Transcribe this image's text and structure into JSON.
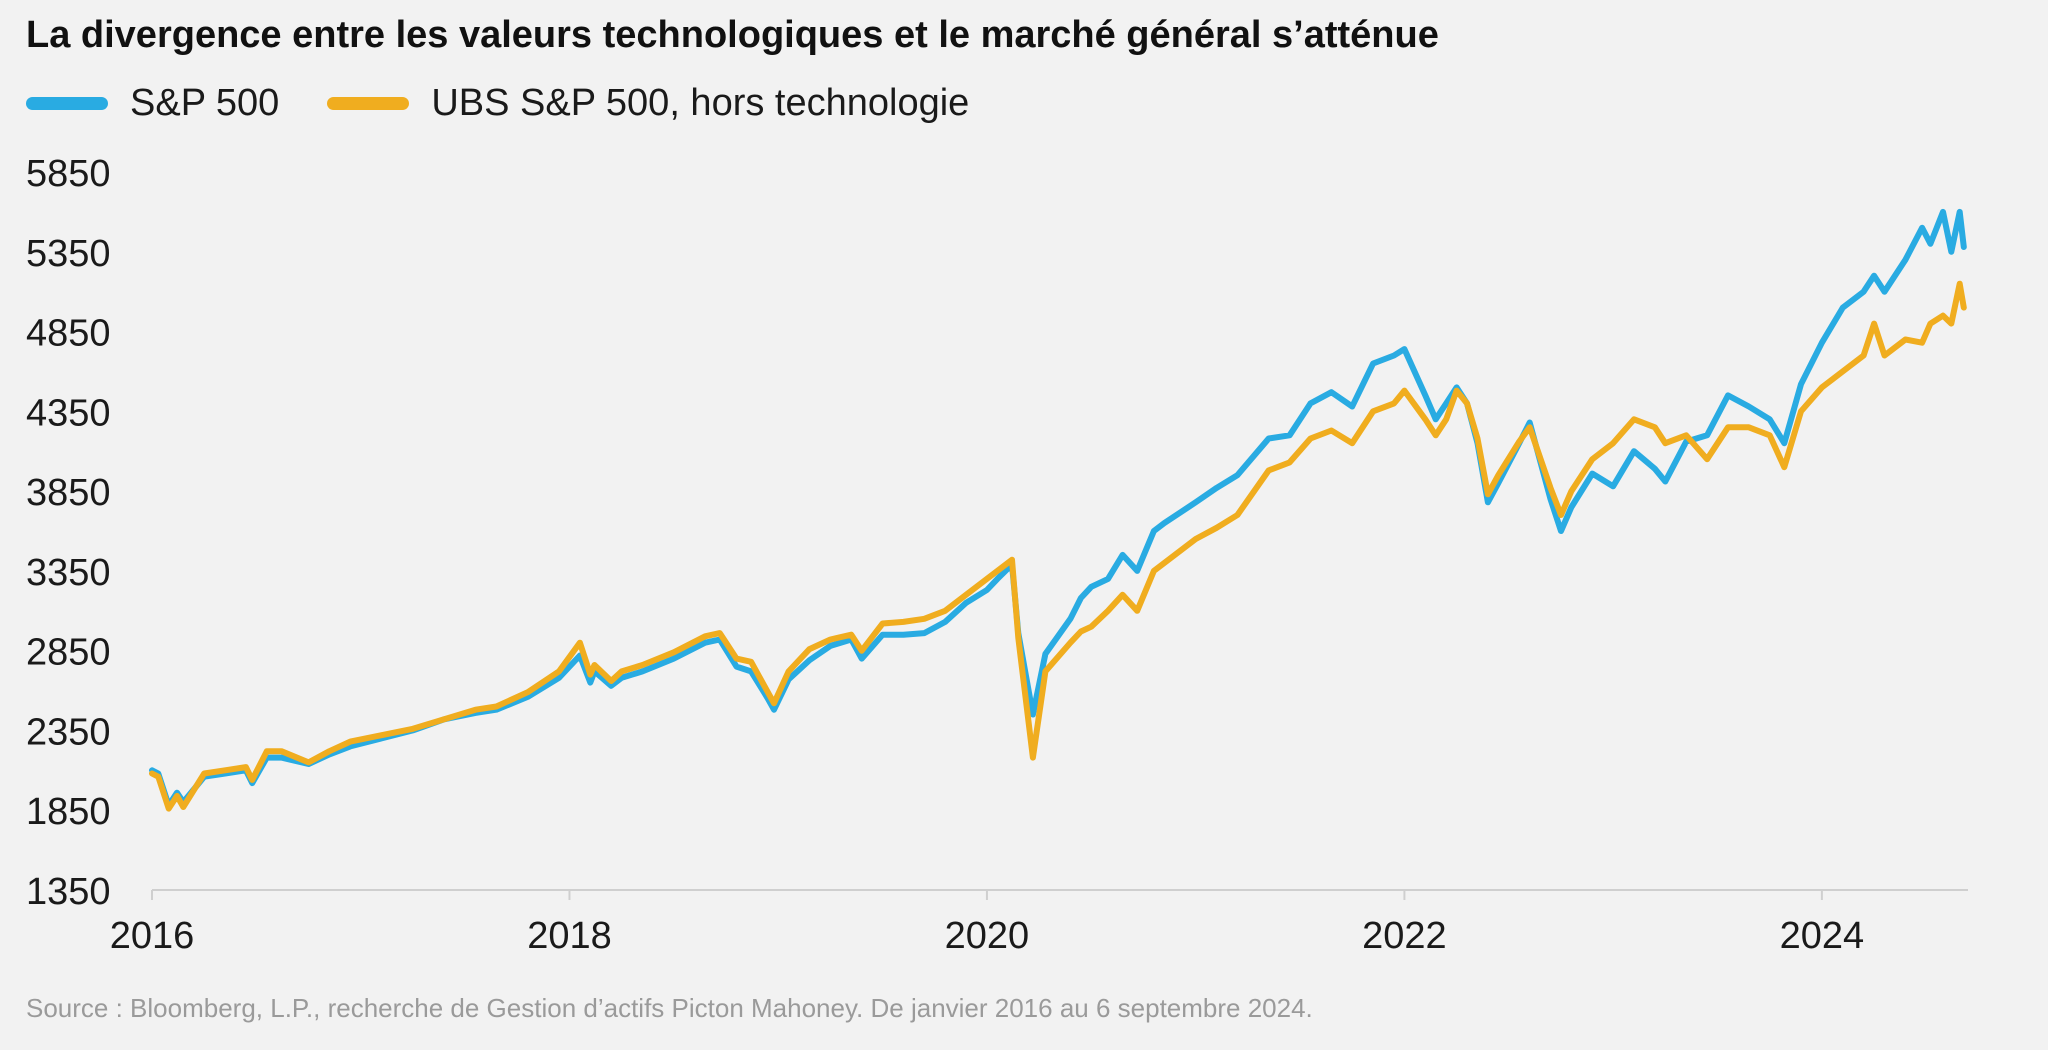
{
  "title": "La divergence entre les valeurs technologiques et le marché général s’atténue",
  "source": "Source : Bloomberg, L.P., recherche de Gestion d’actifs Picton Mahoney. De janvier 2016 au 6 septembre 2024.",
  "colors": {
    "sp500": "#29abe2",
    "ubs": "#f0ad1f",
    "axis": "#cfcfcf",
    "text": "#1a1a1a"
  },
  "chart_data": {
    "type": "line",
    "title": "La divergence entre les valeurs technologiques et le marché général s’atténue",
    "xlabel": "",
    "ylabel": "",
    "xlim": [
      2016.0,
      2024.7
    ],
    "ylim": [
      1350,
      5850
    ],
    "yticks": [
      "5850",
      "5350",
      "4850",
      "4350",
      "3850",
      "3350",
      "2850",
      "2350",
      "1850",
      "1350"
    ],
    "xticks": [
      "2016",
      "2018",
      "2020",
      "2022",
      "2024"
    ],
    "grid": false,
    "legend_position": "top-left",
    "series": [
      {
        "name": "S&P 500",
        "x": [
          2016.0,
          2016.03,
          2016.08,
          2016.12,
          2016.15,
          2016.25,
          2016.35,
          2016.45,
          2016.48,
          2016.55,
          2016.62,
          2016.75,
          2016.85,
          2016.95,
          2017.1,
          2017.25,
          2017.4,
          2017.55,
          2017.65,
          2017.8,
          2017.95,
          2018.05,
          2018.1,
          2018.12,
          2018.2,
          2018.25,
          2018.35,
          2018.5,
          2018.65,
          2018.72,
          2018.8,
          2018.87,
          2018.95,
          2018.98,
          2019.05,
          2019.15,
          2019.25,
          2019.35,
          2019.4,
          2019.5,
          2019.6,
          2019.7,
          2019.8,
          2019.9,
          2020.0,
          2020.05,
          2020.12,
          2020.15,
          2020.22,
          2020.28,
          2020.4,
          2020.45,
          2020.5,
          2020.58,
          2020.65,
          2020.72,
          2020.8,
          2020.85,
          2021.0,
          2021.1,
          2021.2,
          2021.35,
          2021.45,
          2021.55,
          2021.65,
          2021.75,
          2021.85,
          2021.95,
          2022.0,
          2022.1,
          2022.15,
          2022.2,
          2022.25,
          2022.3,
          2022.35,
          2022.4,
          2022.45,
          2022.55,
          2022.6,
          2022.7,
          2022.75,
          2022.8,
          2022.9,
          2023.0,
          2023.1,
          2023.2,
          2023.25,
          2023.35,
          2023.45,
          2023.55,
          2023.65,
          2023.75,
          2023.82,
          2023.9,
          2024.0,
          2024.1,
          2024.2,
          2024.25,
          2024.3,
          2024.4,
          2024.48,
          2024.52,
          2024.58,
          2024.62,
          2024.66,
          2024.68
        ],
        "values": [
          2100,
          2080,
          1880,
          1960,
          1900,
          2060,
          2080,
          2100,
          2020,
          2180,
          2180,
          2140,
          2200,
          2250,
          2300,
          2350,
          2420,
          2460,
          2480,
          2560,
          2680,
          2820,
          2650,
          2720,
          2630,
          2680,
          2720,
          2800,
          2900,
          2920,
          2750,
          2720,
          2550,
          2480,
          2670,
          2790,
          2880,
          2920,
          2800,
          2950,
          2950,
          2960,
          3030,
          3150,
          3230,
          3300,
          3390,
          2960,
          2450,
          2830,
          3050,
          3180,
          3250,
          3300,
          3450,
          3350,
          3600,
          3650,
          3780,
          3870,
          3950,
          4180,
          4200,
          4400,
          4470,
          4380,
          4650,
          4700,
          4740,
          4450,
          4300,
          4400,
          4500,
          4400,
          4150,
          3780,
          3900,
          4150,
          4280,
          3800,
          3600,
          3750,
          3960,
          3880,
          4100,
          3990,
          3910,
          4160,
          4200,
          4450,
          4380,
          4300,
          4150,
          4520,
          4780,
          5000,
          5100,
          5200,
          5100,
          5300,
          5500,
          5400,
          5600,
          5350,
          5600,
          5380
        ],
        "color": "#29abe2"
      },
      {
        "name": "UBS S&P 500, hors technologie",
        "x": [
          2016.0,
          2016.03,
          2016.08,
          2016.12,
          2016.15,
          2016.25,
          2016.35,
          2016.45,
          2016.48,
          2016.55,
          2016.62,
          2016.75,
          2016.85,
          2016.95,
          2017.1,
          2017.25,
          2017.4,
          2017.55,
          2017.65,
          2017.8,
          2017.95,
          2018.05,
          2018.1,
          2018.12,
          2018.2,
          2018.25,
          2018.35,
          2018.5,
          2018.65,
          2018.72,
          2018.8,
          2018.87,
          2018.95,
          2018.98,
          2019.05,
          2019.15,
          2019.25,
          2019.35,
          2019.4,
          2019.5,
          2019.6,
          2019.7,
          2019.8,
          2019.9,
          2020.0,
          2020.05,
          2020.12,
          2020.15,
          2020.22,
          2020.28,
          2020.4,
          2020.45,
          2020.5,
          2020.58,
          2020.65,
          2020.72,
          2020.8,
          2020.85,
          2021.0,
          2021.1,
          2021.2,
          2021.35,
          2021.45,
          2021.55,
          2021.65,
          2021.75,
          2021.85,
          2021.95,
          2022.0,
          2022.1,
          2022.15,
          2022.2,
          2022.25,
          2022.3,
          2022.35,
          2022.4,
          2022.45,
          2022.55,
          2022.6,
          2022.7,
          2022.75,
          2022.8,
          2022.9,
          2023.0,
          2023.1,
          2023.2,
          2023.25,
          2023.35,
          2023.45,
          2023.55,
          2023.65,
          2023.75,
          2023.82,
          2023.9,
          2024.0,
          2024.1,
          2024.2,
          2024.25,
          2024.3,
          2024.4,
          2024.48,
          2024.52,
          2024.58,
          2024.62,
          2024.66,
          2024.68
        ],
        "values": [
          2080,
          2060,
          1860,
          1940,
          1870,
          2080,
          2100,
          2120,
          2040,
          2220,
          2220,
          2150,
          2220,
          2280,
          2320,
          2360,
          2420,
          2480,
          2500,
          2590,
          2720,
          2900,
          2700,
          2760,
          2660,
          2720,
          2760,
          2840,
          2940,
          2960,
          2800,
          2780,
          2590,
          2520,
          2720,
          2860,
          2920,
          2950,
          2850,
          3020,
          3030,
          3050,
          3100,
          3200,
          3300,
          3350,
          3420,
          2930,
          2180,
          2720,
          2900,
          2970,
          3000,
          3100,
          3200,
          3100,
          3350,
          3400,
          3550,
          3620,
          3700,
          3980,
          4030,
          4180,
          4230,
          4150,
          4350,
          4400,
          4480,
          4300,
          4200,
          4300,
          4480,
          4400,
          4180,
          3830,
          3950,
          4160,
          4250,
          3870,
          3700,
          3850,
          4050,
          4150,
          4300,
          4250,
          4150,
          4200,
          4050,
          4250,
          4250,
          4200,
          4000,
          4350,
          4500,
          4600,
          4700,
          4900,
          4700,
          4800,
          4780,
          4900,
          4950,
          4900,
          5150,
          5000
        ],
        "color": "#f0ad1f"
      }
    ]
  }
}
